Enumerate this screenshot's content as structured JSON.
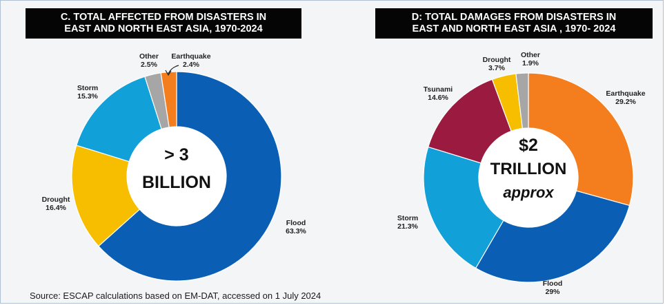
{
  "chart_data": [
    {
      "type": "pie",
      "title_lines": [
        "C. TOTAL AFFECTED FROM DISASTERS IN",
        "EAST AND NORTH EAST ASIA, 1970-2024"
      ],
      "center_lines": [
        "> 3",
        "BILLION"
      ],
      "slices": [
        {
          "name": "Flood",
          "label": "63.3%",
          "value": 63.3,
          "color": "#0a5fb4"
        },
        {
          "name": "Drought",
          "label": "16.4%",
          "value": 16.4,
          "color": "#f7be00"
        },
        {
          "name": "Storm",
          "label": "15.3%",
          "value": 15.3,
          "color": "#12a0d9"
        },
        {
          "name": "Other",
          "label": "2.5%",
          "value": 2.5,
          "color": "#a6a6a6"
        },
        {
          "name": "Earthquake",
          "label": "2.4%",
          "value": 2.4,
          "color": "#f47d1e"
        }
      ]
    },
    {
      "type": "pie",
      "title_lines": [
        "D: TOTAL DAMAGES FROM DISASTERS IN",
        "EAST AND NORTH EAST ASIA , 1970- 2024"
      ],
      "center_lines": [
        "$2",
        "TRILLION",
        "approx"
      ],
      "slices": [
        {
          "name": "Earthquake",
          "label": "29.2%",
          "value": 29.2,
          "color": "#f47d1e"
        },
        {
          "name": "Flood",
          "label": "29%",
          "value": 29.0,
          "color": "#0a5fb4"
        },
        {
          "name": "Storm",
          "label": "21.3%",
          "value": 21.3,
          "color": "#12a0d9"
        },
        {
          "name": "Tsunami",
          "label": "14.6%",
          "value": 14.6,
          "color": "#9b1b40"
        },
        {
          "name": "Drought",
          "label": "3.7%",
          "value": 3.7,
          "color": "#f7be00"
        },
        {
          "name": "Other",
          "label": "1.9%",
          "value": 1.9,
          "color": "#a6a6a6"
        }
      ]
    }
  ],
  "source": "Source: ESCAP calculations based on EM-DAT, accessed on 1 July 2024"
}
